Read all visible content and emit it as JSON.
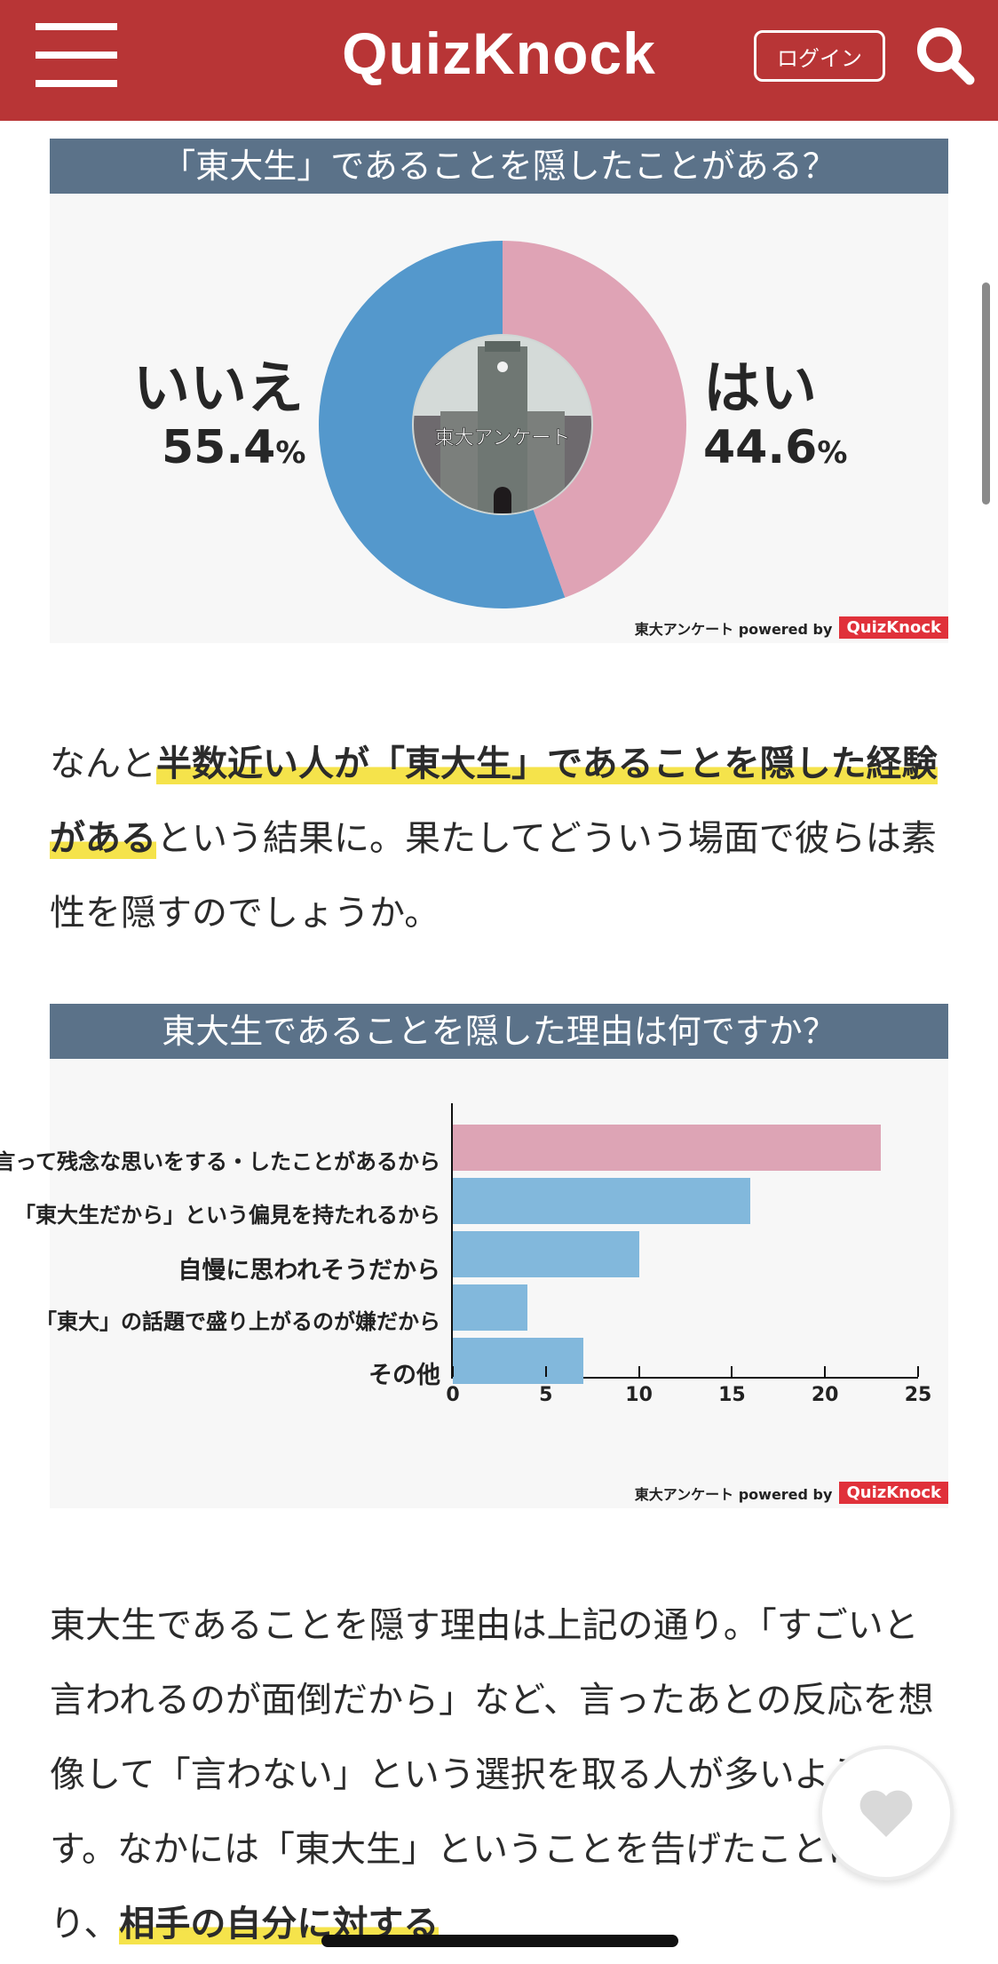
{
  "header": {
    "logo": "QuizKnock",
    "login_label": "ログイン",
    "menu_icon": "hamburger-icon",
    "search_icon": "search-icon",
    "background_color": "#b83536"
  },
  "chart1": {
    "title": "「東大生」であることを隠したことがある？",
    "no_label": "いいえ",
    "no_value": "55.4",
    "yes_label": "はい",
    "yes_value": "44.6",
    "percent_sign": "%",
    "center_caption": "東大アンケート",
    "credit_text": "東大アンケート powered by",
    "credit_brand": "QuizKnock"
  },
  "paragraph1": {
    "part1": "なんと",
    "highlight": "半数近い人が「東大生」であることを隠した経験がある",
    "part2": "という結果に。果たしてどういう場面で彼らは素性を隠すのでしょうか。"
  },
  "chart2": {
    "title": "東大生であることを隠した理由は何ですか？",
    "credit_text": "東大アンケート powered by",
    "credit_brand": "QuizKnock"
  },
  "paragraph2": {
    "part1": "東大生であることを隠す理由は上記の通り。「すごいと言われるのが面倒だから」など、言ったあとの反応を想像して「言わない」という選択を取る人が多いようです。なかには「東大生」ということを告げたことにより、",
    "highlight": "相手の自分に対する"
  },
  "like_button": {
    "icon": "heart-icon"
  },
  "chart_data": [
    {
      "type": "pie",
      "title": "「東大生」であることを隠したことがある？",
      "categories": [
        "はい",
        "いいえ"
      ],
      "values": [
        44.6,
        55.4
      ],
      "unit": "%",
      "colors": [
        "#dfa3b5",
        "#5498cc"
      ],
      "style": "donut"
    },
    {
      "type": "bar",
      "orientation": "horizontal",
      "title": "東大生であることを隠した理由は何ですか？",
      "categories": [
        "言って残念な思いをする・したことがあるから",
        "「東大生だから」という偏見を持たれるから",
        "自慢に思われそうだから",
        "「東大」の話題で盛り上がるのが嫌だから",
        "その他"
      ],
      "values": [
        23,
        16,
        10,
        4,
        7
      ],
      "colors": [
        "#dda4b5",
        "#82b8dc",
        "#82b8dc",
        "#82b8dc",
        "#82b8dc"
      ],
      "xticks": [
        0,
        5,
        10,
        15,
        20,
        25
      ],
      "xlim": [
        0,
        25
      ],
      "xlabel": "",
      "ylabel": "",
      "grid": false
    }
  ]
}
